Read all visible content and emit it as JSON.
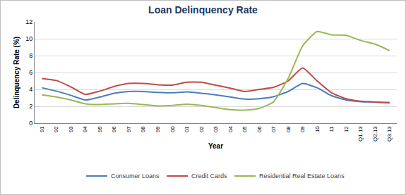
{
  "chart_data": {
    "type": "line",
    "title": "Loan Delinquency Rate",
    "x_label": "Year",
    "y_label": "Delinquency Rate (%)",
    "categories": [
      "91",
      "92",
      "93",
      "94",
      "95",
      "96",
      "97",
      "98",
      "99",
      "00",
      "01",
      "02",
      "03",
      "04",
      "05",
      "06",
      "07",
      "08",
      "09",
      "10",
      "11",
      "12",
      "Q1.13",
      "Q2.13",
      "Q3.13"
    ],
    "series": [
      {
        "name": "Consumer Loans",
        "color": "#4a7ebb",
        "values": [
          4.2,
          3.8,
          3.3,
          2.75,
          3.1,
          3.55,
          3.75,
          3.75,
          3.65,
          3.6,
          3.7,
          3.55,
          3.35,
          3.1,
          2.85,
          2.9,
          3.15,
          3.75,
          4.7,
          4.2,
          3.25,
          2.75,
          2.55,
          2.5,
          2.4
        ]
      },
      {
        "name": "Credit Cards",
        "color": "#be4b48",
        "values": [
          5.3,
          5.05,
          4.3,
          3.4,
          3.8,
          4.35,
          4.7,
          4.7,
          4.55,
          4.5,
          4.85,
          4.85,
          4.5,
          4.15,
          3.75,
          4.0,
          4.25,
          5.0,
          6.55,
          5.0,
          3.6,
          2.9,
          2.6,
          2.5,
          2.45
        ]
      },
      {
        "name": "Residential Real Estate Loans",
        "color": "#98b954",
        "values": [
          3.35,
          3.1,
          2.75,
          2.3,
          2.2,
          2.3,
          2.35,
          2.2,
          2.05,
          2.1,
          2.25,
          2.1,
          1.85,
          1.6,
          1.55,
          1.75,
          2.55,
          5.3,
          9.15,
          10.85,
          10.45,
          10.4,
          9.8,
          9.35,
          8.6
        ]
      }
    ],
    "ylim": [
      0,
      12
    ],
    "yticks": [
      0,
      2,
      4,
      6,
      8,
      10,
      12
    ],
    "grid": true,
    "legend": "bottom"
  }
}
